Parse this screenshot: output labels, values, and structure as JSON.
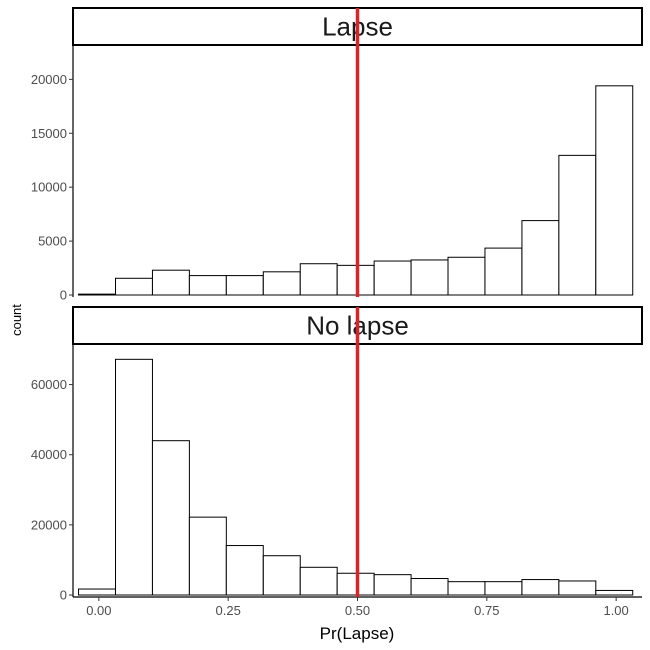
{
  "chart_data": {
    "type": "bar",
    "subtype": "faceted-histogram",
    "xlabel": "Pr(Lapse)",
    "ylabel": "count",
    "xlim": [
      -0.05,
      1.05
    ],
    "x_ticks": [
      0.0,
      0.25,
      0.5,
      0.75,
      1.0
    ],
    "x_tick_labels": [
      "0.00",
      "0.25",
      "0.50",
      "0.75",
      "1.00"
    ],
    "bin_width": 0.0714,
    "bin_centers": [
      -0.0036,
      0.0679,
      0.1393,
      0.2107,
      0.2821,
      0.3536,
      0.425,
      0.4964,
      0.5679,
      0.6393,
      0.7107,
      0.7821,
      0.8536,
      0.925,
      0.9964
    ],
    "vline": {
      "x": 0.5,
      "color": "#d62728"
    },
    "bar_fill": "#ffffff",
    "bar_stroke": "#000000",
    "grid": false,
    "facets": [
      {
        "label": "Lapse",
        "ylim": [
          0,
          23000
        ],
        "y_ticks": [
          0,
          5000,
          10000,
          15000,
          20000
        ],
        "y_tick_labels": [
          "0",
          "5000",
          "10000",
          "15000",
          "20000"
        ],
        "values": [
          80,
          1550,
          2300,
          1800,
          1800,
          2150,
          2900,
          2750,
          3150,
          3250,
          3500,
          4350,
          6900,
          12950,
          19400
        ]
      },
      {
        "label": "No lapse",
        "ylim": [
          0,
          71000
        ],
        "y_ticks": [
          0,
          20000,
          40000,
          60000
        ],
        "y_tick_labels": [
          "0",
          "20000",
          "40000",
          "60000"
        ],
        "values": [
          1700,
          67200,
          44000,
          22200,
          14100,
          11200,
          7900,
          6200,
          5800,
          4700,
          3800,
          3800,
          4400,
          4000,
          1300
        ]
      }
    ]
  }
}
